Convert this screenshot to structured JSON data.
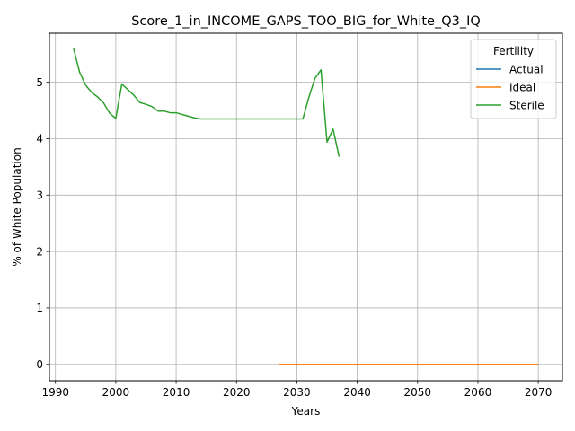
{
  "chart_data": {
    "type": "line",
    "title": "Score_1_in_INCOME_GAPS_TOO_BIG_for_White_Q3_IQ",
    "xlabel": "Years",
    "ylabel": "% of White Population",
    "xlim": [
      1989,
      2074
    ],
    "ylim": [
      -0.29,
      5.87
    ],
    "x_ticks": [
      1990,
      2000,
      2010,
      2020,
      2030,
      2040,
      2050,
      2060,
      2070
    ],
    "y_ticks": [
      0,
      1,
      2,
      3,
      4,
      5
    ],
    "grid": true,
    "legend": {
      "title": "Fertility",
      "placement": "top-right"
    },
    "series": [
      {
        "name": "Actual",
        "color": "#1f77b4",
        "points": [
          [
            2027,
            0
          ],
          [
            2070,
            0
          ]
        ]
      },
      {
        "name": "Ideal",
        "color": "#ff7f0e",
        "points": [
          [
            2027,
            0
          ],
          [
            2070,
            0
          ]
        ]
      },
      {
        "name": "Sterile",
        "color": "#2ca02c",
        "points": [
          [
            1993,
            5.6
          ],
          [
            1994,
            5.18
          ],
          [
            1995,
            4.95
          ],
          [
            1996,
            4.82
          ],
          [
            1997,
            4.74
          ],
          [
            1998,
            4.63
          ],
          [
            1999,
            4.45
          ],
          [
            2000,
            4.36
          ],
          [
            2001,
            4.97
          ],
          [
            2002,
            4.87
          ],
          [
            2003,
            4.77
          ],
          [
            2004,
            4.64
          ],
          [
            2005,
            4.61
          ],
          [
            2006,
            4.57
          ],
          [
            2007,
            4.49
          ],
          [
            2008,
            4.49
          ],
          [
            2009,
            4.46
          ],
          [
            2010,
            4.46
          ],
          [
            2011,
            4.43
          ],
          [
            2012,
            4.4
          ],
          [
            2013,
            4.37
          ],
          [
            2014,
            4.35
          ],
          [
            2015,
            4.35
          ],
          [
            2016,
            4.35
          ],
          [
            2017,
            4.35
          ],
          [
            2018,
            4.35
          ],
          [
            2019,
            4.35
          ],
          [
            2020,
            4.35
          ],
          [
            2021,
            4.35
          ],
          [
            2022,
            4.35
          ],
          [
            2023,
            4.35
          ],
          [
            2024,
            4.35
          ],
          [
            2025,
            4.35
          ],
          [
            2026,
            4.35
          ],
          [
            2027,
            4.35
          ],
          [
            2028,
            4.35
          ],
          [
            2029,
            4.35
          ],
          [
            2030,
            4.35
          ],
          [
            2031,
            4.35
          ],
          [
            2032,
            4.74
          ],
          [
            2033,
            5.07
          ],
          [
            2034,
            5.22
          ],
          [
            2035,
            3.94
          ],
          [
            2036,
            4.17
          ],
          [
            2037,
            3.68
          ]
        ]
      }
    ]
  }
}
